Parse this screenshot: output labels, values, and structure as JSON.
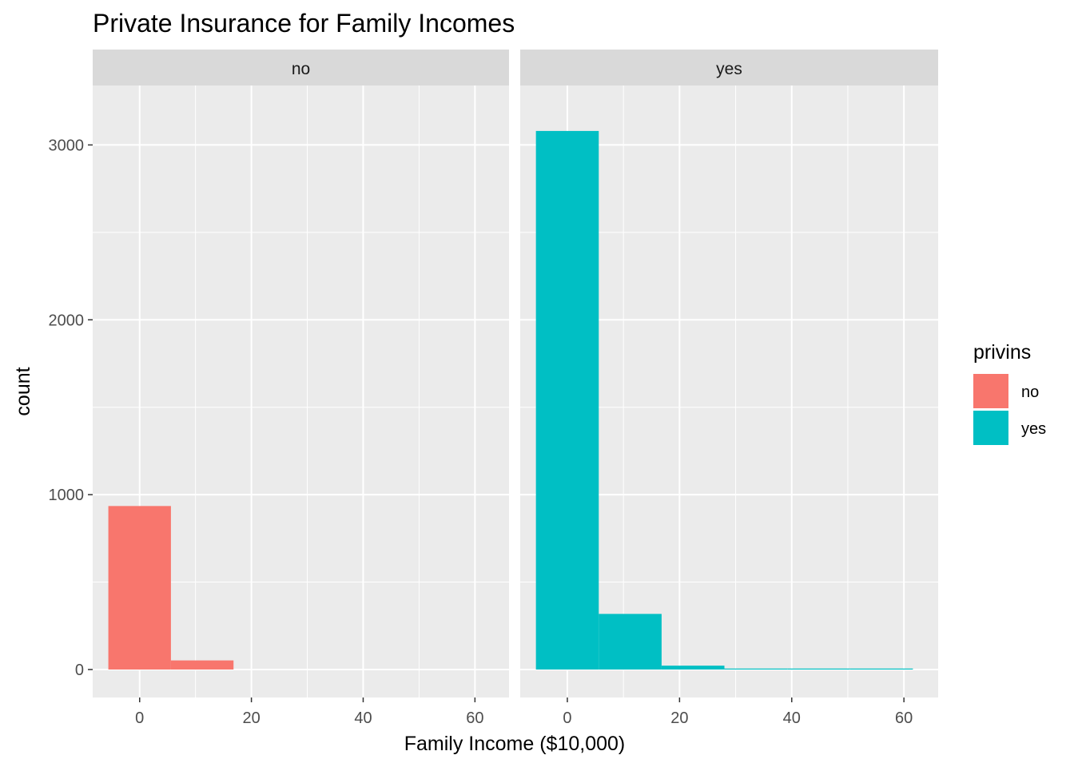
{
  "chart_data": {
    "type": "bar",
    "subtype": "faceted histogram",
    "title": "Private Insurance for Family Incomes",
    "xlabel": "Family Income ($10,000)",
    "ylabel": "count",
    "xlim": [
      -8.4,
      66.1
    ],
    "ylim": [
      -160,
      3340
    ],
    "x_ticks": [
      0,
      20,
      40,
      60
    ],
    "y_ticks": [
      0,
      1000,
      2000,
      3000
    ],
    "grid": true,
    "bin_width": 11.2,
    "legend": {
      "title": "privins",
      "position": "right",
      "entries": [
        {
          "label": "no",
          "color": "#F8766D"
        },
        {
          "label": "yes",
          "color": "#00BFC4"
        }
      ]
    },
    "facets": [
      {
        "label": "no",
        "color": "#F8766D",
        "bins": [
          {
            "xmin": -5.6,
            "xmax": 5.6,
            "count": 935
          },
          {
            "xmin": 5.6,
            "xmax": 16.8,
            "count": 52
          },
          {
            "xmin": 16.8,
            "xmax": 28.0,
            "count": 0
          },
          {
            "xmin": 28.0,
            "xmax": 39.2,
            "count": 0
          },
          {
            "xmin": 39.2,
            "xmax": 50.4,
            "count": 0
          },
          {
            "xmin": 50.4,
            "xmax": 61.6,
            "count": 0
          }
        ]
      },
      {
        "label": "yes",
        "color": "#00BFC4",
        "bins": [
          {
            "xmin": -5.6,
            "xmax": 5.6,
            "count": 3080
          },
          {
            "xmin": 5.6,
            "xmax": 16.8,
            "count": 318
          },
          {
            "xmin": 16.8,
            "xmax": 28.0,
            "count": 22
          },
          {
            "xmin": 28.0,
            "xmax": 39.2,
            "count": 4
          },
          {
            "xmin": 39.2,
            "xmax": 50.4,
            "count": 2
          },
          {
            "xmin": 50.4,
            "xmax": 61.6,
            "count": 1
          }
        ]
      }
    ]
  }
}
